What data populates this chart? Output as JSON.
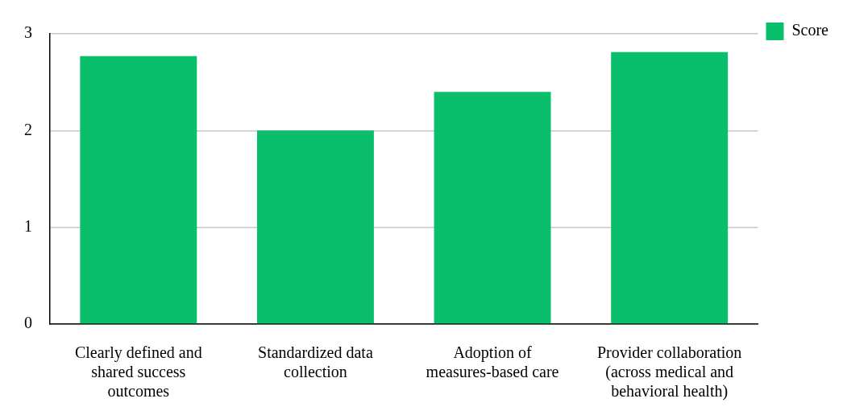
{
  "chart_data": {
    "type": "bar",
    "categories": [
      "Clearly defined and shared success outcomes",
      "Standardized data collection",
      "Adoption of measures-based care",
      "Provider collaboration (across medical and behavioral health)"
    ],
    "series": [
      {
        "name": "Score",
        "color": "#0abf6b",
        "values": [
          2.77,
          2.0,
          2.4,
          2.81
        ]
      }
    ],
    "ylim": [
      0,
      3
    ],
    "yticks": [
      0,
      1,
      2,
      3
    ],
    "grid": "y",
    "legend": "top right"
  }
}
